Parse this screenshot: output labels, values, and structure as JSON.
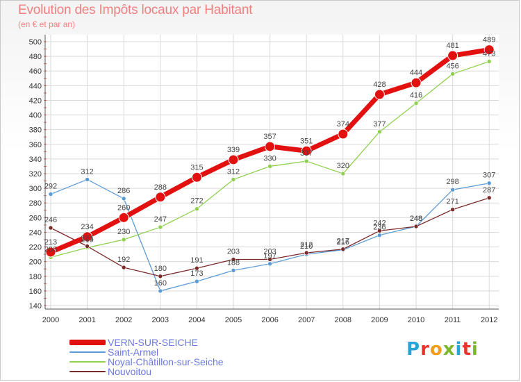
{
  "title": "Evolution des Impôts locaux par Habitant",
  "subtitle": "(en € et par an)",
  "logo": {
    "text": "Proxiti",
    "colors": [
      "#2aa3d6",
      "#e8352e",
      "#f29c1f",
      "#7cb82f",
      "#2aa3d6",
      "#e8352e",
      "#7cb82f"
    ]
  },
  "chart_data": {
    "type": "line",
    "title": "Evolution des Impôts locaux par Habitant",
    "subtitle": "(en € et par an)",
    "xlabel": "",
    "ylabel": "",
    "x": [
      "2000",
      "2001",
      "2002",
      "2003",
      "2004",
      "2005",
      "2006",
      "2007",
      "2008",
      "2009",
      "2010",
      "2011",
      "2012"
    ],
    "ylim": [
      140,
      500
    ],
    "yticks": [
      140,
      160,
      180,
      200,
      220,
      240,
      260,
      280,
      300,
      320,
      340,
      360,
      380,
      400,
      420,
      440,
      460,
      480,
      500
    ],
    "grid": true,
    "legend_position": "bottom-left",
    "series": [
      {
        "name": "Saint-Armel",
        "color": "#5b9bd5",
        "values": [
          292,
          312,
          286,
          160,
          173,
          188,
          197,
          210,
          216,
          236,
          248,
          298,
          307
        ]
      },
      {
        "name": "Noyal-Châtillon-sur-Seiche",
        "color": "#8fd14f",
        "values": [
          206,
          219,
          230,
          247,
          272,
          312,
          330,
          337,
          320,
          377,
          416,
          456,
          473
        ]
      },
      {
        "name": "Nouvoitou",
        "color": "#7b2a2a",
        "values": [
          246,
          221,
          192,
          180,
          191,
          203,
          203,
          212,
          217,
          242,
          248,
          271,
          287
        ]
      },
      {
        "name": "VERN-SUR-SEICHE",
        "color": "#e31010",
        "values": [
          213,
          234,
          260,
          288,
          315,
          339,
          357,
          351,
          374,
          428,
          444,
          481,
          489
        ]
      }
    ]
  }
}
